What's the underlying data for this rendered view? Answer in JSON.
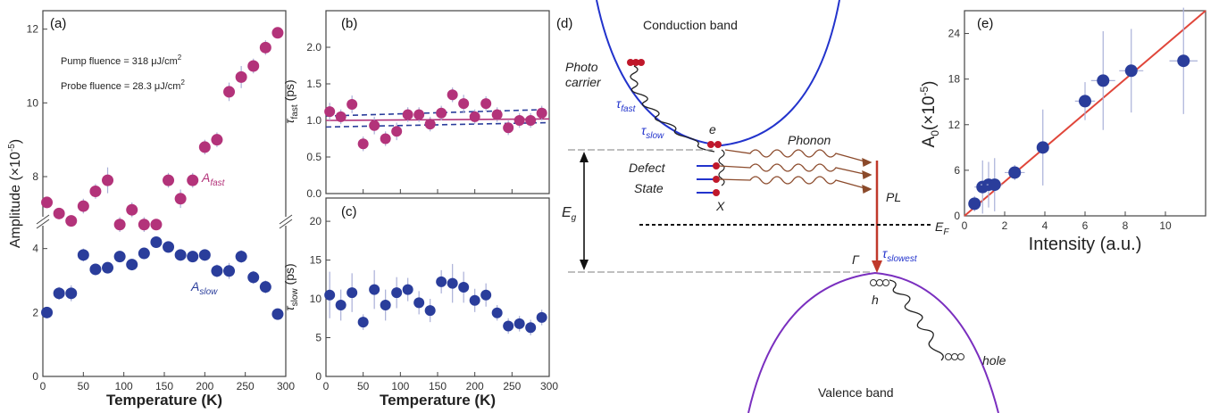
{
  "chart_data": [
    {
      "id": "a",
      "type": "scatter",
      "panel_label": "(a)",
      "xlabel": "Temperature (K)",
      "ylabel": "Amplitude (×10",
      "ylabel_exp": "-5",
      "ylabel_end": ")",
      "xlim": [
        0,
        300
      ],
      "x_ticks": [
        "0",
        "50",
        "100",
        "150",
        "200",
        "250",
        "300"
      ],
      "y_lower_ticks": [
        "0",
        "2",
        "4"
      ],
      "y_upper_ticks": [
        "8",
        "10",
        "12"
      ],
      "broken_axis": true,
      "annotations": {
        "pump": "Pump fluence = 318  μJ/cm",
        "probe": "Probe fluence = 28.3 μJ/cm",
        "sup": "2"
      },
      "series": [
        {
          "name": "A",
          "sub": "fast",
          "color": "#b3337a",
          "segment": "upper",
          "x": [
            5,
            20,
            35,
            50,
            65,
            80,
            95,
            110,
            125,
            140,
            155,
            170,
            185,
            200,
            215,
            230,
            245,
            260,
            275,
            290
          ],
          "y": [
            7.3,
            7.0,
            6.8,
            7.2,
            7.6,
            7.9,
            6.7,
            7.1,
            6.7,
            6.7,
            7.9,
            7.4,
            7.9,
            8.8,
            9.0,
            10.3,
            10.7,
            11.0,
            11.5,
            11.9
          ],
          "err": [
            0.15,
            0.15,
            0.15,
            0.2,
            0.2,
            0.35,
            0.2,
            0.2,
            0.2,
            0.15,
            0.2,
            0.25,
            0.2,
            0.2,
            0.2,
            0.25,
            0.3,
            0.2,
            0.2,
            0.15
          ]
        },
        {
          "name": "A",
          "sub": "slow",
          "color": "#2a3d9b",
          "segment": "lower",
          "x": [
            5,
            20,
            35,
            50,
            65,
            80,
            95,
            110,
            125,
            140,
            155,
            170,
            185,
            200,
            215,
            230,
            245,
            260,
            275,
            290
          ],
          "y": [
            2.0,
            2.6,
            2.6,
            3.8,
            3.35,
            3.4,
            3.75,
            3.5,
            3.85,
            4.2,
            4.05,
            3.8,
            3.75,
            3.8,
            3.3,
            3.3,
            3.75,
            3.1,
            2.8,
            1.95
          ],
          "err": [
            0.15,
            0.2,
            0.25,
            0.2,
            0.15,
            0.15,
            0.15,
            0.15,
            0.15,
            0.15,
            0.15,
            0.15,
            0.15,
            0.15,
            0.2,
            0.25,
            0.2,
            0.2,
            0.2,
            0.15
          ]
        }
      ]
    },
    {
      "id": "b",
      "type": "scatter",
      "panel_label": "(b)",
      "ylabel": "τ",
      "ylabel_sub": "fast",
      "ylabel_end": " (ps)",
      "xlim": [
        0,
        300
      ],
      "ylim": [
        0,
        2.5
      ],
      "y_ticks": [
        "0.0",
        "0.5",
        "1.0",
        "1.5",
        "2.0"
      ],
      "series": [
        {
          "color": "#b3337a",
          "x": [
            5,
            20,
            35,
            50,
            65,
            80,
            95,
            110,
            125,
            140,
            155,
            170,
            185,
            200,
            215,
            230,
            245,
            260,
            275,
            290
          ],
          "y": [
            1.12,
            1.05,
            1.22,
            0.68,
            0.93,
            0.75,
            0.85,
            1.08,
            1.08,
            0.95,
            1.1,
            1.35,
            1.23,
            1.05,
            1.23,
            1.08,
            0.9,
            1.0,
            1.0,
            1.1
          ],
          "err": [
            0.12,
            0.1,
            0.12,
            0.1,
            0.12,
            0.1,
            0.12,
            0.1,
            0.1,
            0.1,
            0.1,
            0.1,
            0.12,
            0.1,
            0.1,
            0.1,
            0.1,
            0.1,
            0.1,
            0.1
          ]
        }
      ],
      "lines": [
        {
          "style": "solid",
          "color": "#b3337a",
          "y0": 1.0,
          "y1": 1.02
        },
        {
          "style": "dashed",
          "color": "#2a3d9b",
          "y0": 1.06,
          "y1": 1.15
        },
        {
          "style": "dashed",
          "color": "#2a3d9b",
          "y0": 0.91,
          "y1": 0.97
        }
      ]
    },
    {
      "id": "c",
      "type": "scatter",
      "panel_label": "(c)",
      "xlabel": "Temperature (K)",
      "ylabel": "τ",
      "ylabel_sub": "slow",
      "ylabel_end": " (ps)",
      "xlim": [
        0,
        300
      ],
      "ylim": [
        0,
        23
      ],
      "x_ticks": [
        "0",
        "50",
        "100",
        "150",
        "200",
        "250",
        "300"
      ],
      "y_ticks": [
        "0",
        "5",
        "10",
        "15",
        "20"
      ],
      "series": [
        {
          "color": "#2a3d9b",
          "x": [
            5,
            20,
            35,
            50,
            65,
            80,
            95,
            110,
            125,
            140,
            155,
            170,
            185,
            200,
            215,
            230,
            245,
            260,
            275,
            290
          ],
          "y": [
            10.5,
            9.2,
            10.8,
            7.0,
            11.2,
            9.2,
            10.8,
            11.2,
            9.5,
            8.5,
            12.2,
            12.0,
            11.5,
            9.8,
            10.5,
            8.2,
            6.5,
            6.8,
            6.3,
            7.6
          ],
          "err": [
            3.0,
            2.0,
            2.5,
            1.0,
            2.5,
            2.0,
            2.0,
            1.5,
            1.5,
            1.5,
            1.5,
            2.5,
            2.0,
            1.5,
            1.5,
            1.0,
            1.0,
            1.0,
            1.0,
            1.0
          ]
        }
      ]
    },
    {
      "id": "e",
      "type": "scatter",
      "panel_label": "(e)",
      "xlabel": "Intensity (a.u.)",
      "ylabel": "A",
      "ylabel_sub": "0",
      "ylabel_mid": "(×10",
      "ylabel_exp": "-5",
      "ylabel_end": ")",
      "xlim": [
        0,
        12
      ],
      "ylim": [
        0,
        27
      ],
      "x_ticks": [
        "0",
        "2",
        "4",
        "6",
        "8",
        "10"
      ],
      "y_ticks": [
        "0",
        "6",
        "12",
        "18",
        "24"
      ],
      "series": [
        {
          "color": "#2a3d9b",
          "x": [
            0.5,
            0.9,
            1.2,
            1.5,
            2.5,
            3.9,
            6.0,
            6.9,
            8.3,
            10.9
          ],
          "y": [
            1.6,
            3.8,
            4.1,
            4.1,
            5.7,
            9.0,
            15.1,
            17.8,
            19.1,
            20.4
          ],
          "err": [
            1.0,
            3.5,
            3.0,
            3.5,
            1.0,
            5.0,
            2.5,
            6.5,
            5.5,
            7.0
          ],
          "xerr": [
            0.3,
            0.4,
            0.4,
            0.4,
            0.5,
            0.3,
            0.5,
            0.6,
            0.6,
            0.7
          ]
        }
      ],
      "fit": {
        "color": "#e0463a",
        "x0": 0,
        "y0": 0,
        "x1": 12,
        "y1": 27
      }
    }
  ],
  "diagram": {
    "panel_label": "(d)",
    "conduction_band": "Conduction band",
    "valence_band": "Valence band",
    "photo": "Photo",
    "carrier": "carrier",
    "tau": "τ",
    "tau_fast_sub": "fast",
    "tau_slow_sub": "slow",
    "tau_slowest_sub": "slowest",
    "e_label": "e",
    "phonon": "Phonon",
    "defect": "Defect",
    "state": "State",
    "x_label": "X",
    "pl": "PL",
    "eg": "E",
    "eg_sub": "g",
    "ef": "E",
    "ef_sub": "F",
    "gamma": "Γ",
    "h_label": "h",
    "hole": "hole",
    "colors": {
      "conduction": "#2233cc",
      "valence": "#7a2fbf",
      "arrow": "#c0392b",
      "wave": "#8b4a2b",
      "carrier": "#c0182b",
      "tau": "#2233cc"
    }
  }
}
